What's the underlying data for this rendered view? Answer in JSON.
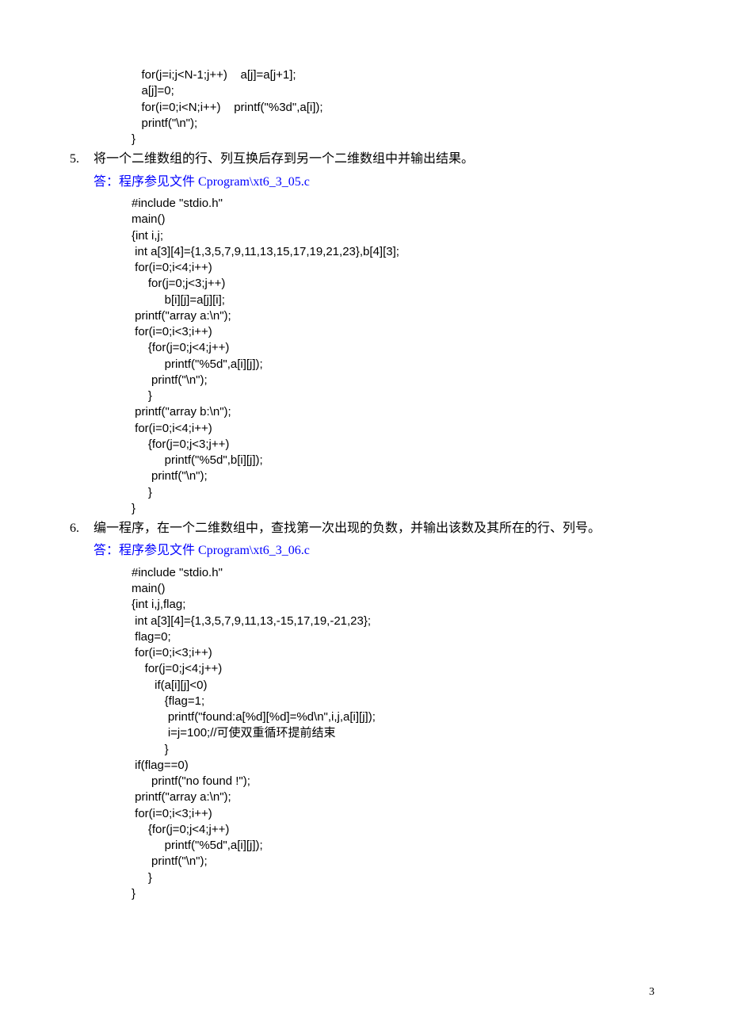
{
  "code_block_0": "   for(j=i;j<N-1;j++)    a[j]=a[j+1];\n   a[j]=0;\n   for(i=0;i<N;i++)    printf(\"%3d\",a[i]);\n   printf(\"\\n\");\n}",
  "q5": {
    "index": "5.",
    "text": "将一个二维数组的行、列互换后存到另一个二维数组中并输出结果。",
    "answer_label": "答：程序参见文件 ",
    "answer_file": "Cprogram\\xt6_3_05.c",
    "code": "#include \"stdio.h\"\nmain()\n{int i,j;\n int a[3][4]={1,3,5,7,9,11,13,15,17,19,21,23},b[4][3];\n for(i=0;i<4;i++)\n     for(j=0;j<3;j++)\n          b[i][j]=a[j][i];\n printf(\"array a:\\n\");\n for(i=0;i<3;i++)\n     {for(j=0;j<4;j++)\n          printf(\"%5d\",a[i][j]);\n      printf(\"\\n\");\n     }\n printf(\"array b:\\n\");\n for(i=0;i<4;i++)\n     {for(j=0;j<3;j++)\n          printf(\"%5d\",b[i][j]);\n      printf(\"\\n\");\n     }\n}"
  },
  "q6": {
    "index": "6.",
    "text": "编一程序，在一个二维数组中，查找第一次出现的负数，并输出该数及其所在的行、列号。",
    "answer_label": "答：程序参见文件 ",
    "answer_file": "Cprogram\\xt6_3_06.c",
    "code": "#include \"stdio.h\"\nmain()\n{int i,j,flag;\n int a[3][4]={1,3,5,7,9,11,13,-15,17,19,-21,23};\n flag=0;\n for(i=0;i<3;i++)\n    for(j=0;j<4;j++)\n       if(a[i][j]<0)\n          {flag=1;\n           printf(\"found:a[%d][%d]=%d\\n\",i,j,a[i][j]);\n           i=j=100;//可使双重循环提前结束\n          }\n if(flag==0)\n      printf(\"no found !\");\n printf(\"array a:\\n\");\n for(i=0;i<3;i++)\n     {for(j=0;j<4;j++)\n          printf(\"%5d\",a[i][j]);\n      printf(\"\\n\");\n     }\n}"
  },
  "page_number": "3"
}
